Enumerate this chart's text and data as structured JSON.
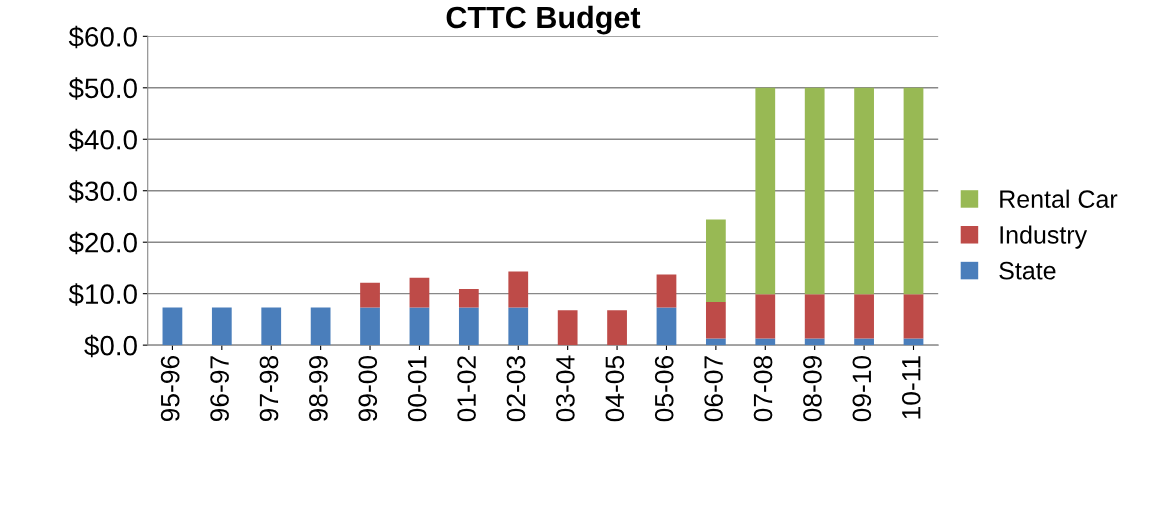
{
  "chart_data": {
    "type": "bar",
    "title": "CTTC Budget",
    "stacked": true,
    "categories": [
      "95-96",
      "96-97",
      "97-98",
      "98-99",
      "99-00",
      "00-01",
      "01-02",
      "02-03",
      "03-04",
      "04-05",
      "05-06",
      "06-07",
      "07-08",
      "08-09",
      "09-10",
      "10-11"
    ],
    "series": [
      {
        "name": "State",
        "color": "#4a7ebb",
        "values": [
          7.3,
          7.3,
          7.3,
          7.3,
          7.3,
          7.3,
          7.3,
          7.3,
          0,
          0,
          7.3,
          1.3,
          1.3,
          1.3,
          1.3,
          1.3
        ]
      },
      {
        "name": "Industry",
        "color": "#be4b48",
        "values": [
          0,
          0,
          0,
          0,
          4.8,
          5.8,
          3.6,
          7.0,
          6.8,
          6.8,
          6.4,
          7.1,
          8.6,
          8.6,
          8.6,
          8.6
        ]
      },
      {
        "name": "Rental Car",
        "color": "#98b954",
        "values": [
          0,
          0,
          0,
          0,
          0,
          0,
          0,
          0,
          0,
          0,
          0,
          16.0,
          40.1,
          40.1,
          40.1,
          40.1
        ]
      }
    ],
    "ylim": [
      0,
      60
    ],
    "yticks": [
      {
        "value": 0,
        "label": "$0.0"
      },
      {
        "value": 10,
        "label": "$10.0"
      },
      {
        "value": 20,
        "label": "$20.0"
      },
      {
        "value": 30,
        "label": "$30.0"
      },
      {
        "value": 40,
        "label": "$40.0"
      },
      {
        "value": 50,
        "label": "$50.0"
      },
      {
        "value": 60,
        "label": "$60.0"
      }
    ],
    "grid": "y",
    "legend": "right"
  }
}
